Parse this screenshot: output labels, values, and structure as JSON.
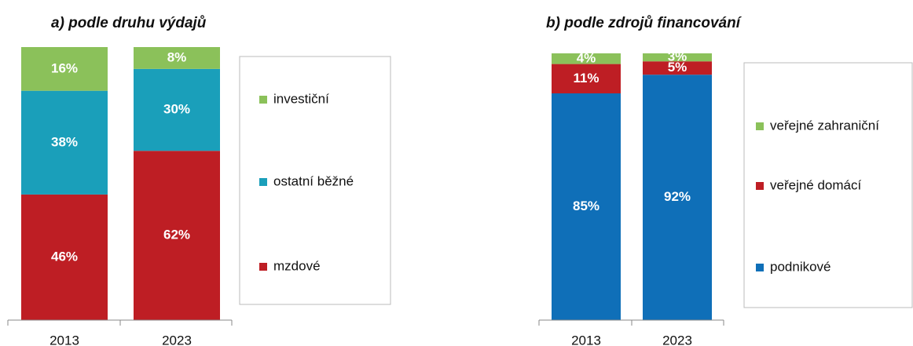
{
  "chart_data": [
    {
      "type": "bar",
      "stacked": true,
      "title": "a) podle druhu výdajů",
      "categories": [
        "2013",
        "2023"
      ],
      "ylim": [
        0,
        100
      ],
      "series": [
        {
          "name": "mzdové",
          "color": "#be1e24",
          "values": [
            46,
            62
          ],
          "value_labels": [
            "46%",
            "62%"
          ]
        },
        {
          "name": "ostatní běžné",
          "color": "#1a9fba",
          "values": [
            38,
            30
          ],
          "value_labels": [
            "38%",
            "30%"
          ]
        },
        {
          "name": "investiční",
          "color": "#8bc15a",
          "values": [
            16,
            8
          ],
          "value_labels": [
            "16%",
            "8%"
          ]
        }
      ]
    },
    {
      "type": "bar",
      "stacked": true,
      "title": "b) podle zdrojů financování",
      "categories": [
        "2013",
        "2023"
      ],
      "ylim": [
        0,
        100
      ],
      "series": [
        {
          "name": "podnikové",
          "color": "#0f6fb8",
          "values": [
            85,
            92
          ],
          "value_labels": [
            "85%",
            "92%"
          ]
        },
        {
          "name": "veřejné domácí",
          "color": "#be1e24",
          "values": [
            11,
            5
          ],
          "value_labels": [
            "11%",
            "5%"
          ]
        },
        {
          "name": "veřejné zahraniční",
          "color": "#8bc15a",
          "values": [
            4,
            3
          ],
          "value_labels": [
            "4%",
            "3%"
          ]
        }
      ]
    }
  ]
}
